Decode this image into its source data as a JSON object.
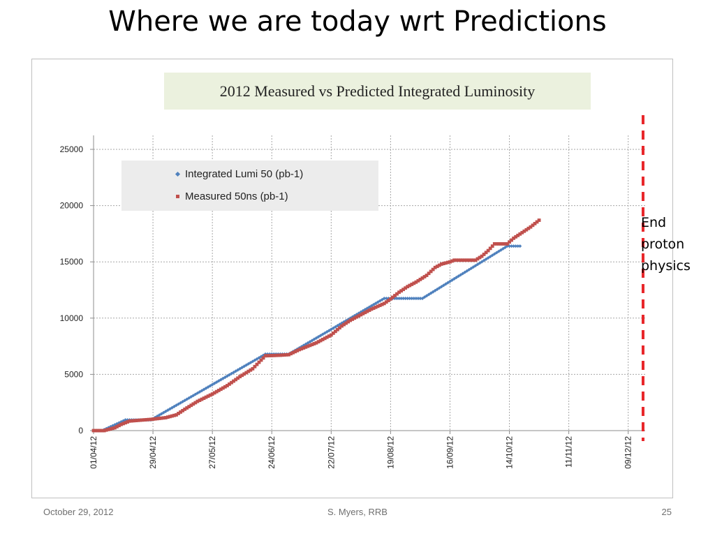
{
  "slide": {
    "title": "Where we are today wrt Predictions",
    "annotation_lines": [
      "End",
      "proton",
      "physics"
    ],
    "footer": {
      "date": "October 29, 2012",
      "author": "S. Myers, RRB",
      "page": "25"
    }
  },
  "colors": {
    "predicted": "#4f81bd",
    "measured": "#c0504d",
    "end_line": "#e8262a",
    "title_box": "#ebf1de"
  },
  "chart_data": {
    "type": "line",
    "title": "2012 Measured vs Predicted Integrated Luminosity",
    "ylim": [
      0,
      25000
    ],
    "y_ticks": [
      0,
      5000,
      10000,
      15000,
      20000,
      25000
    ],
    "y_tick_labels": [
      "0",
      "5000",
      "10000",
      "15000",
      "20000",
      "25000"
    ],
    "x_ticks": [
      "2012-04-01",
      "2012-04-29",
      "2012-05-27",
      "2012-06-24",
      "2012-07-22",
      "2012-08-19",
      "2012-09-16",
      "2012-10-14",
      "2012-11-11",
      "2012-12-09"
    ],
    "x_tick_labels": [
      "01/04/12",
      "29/04/12",
      "27/05/12",
      "24/06/12",
      "22/07/12",
      "19/08/12",
      "16/09/12",
      "14/10/12",
      "11/11/12",
      "09/12/12"
    ],
    "xlim": [
      "2012-04-01",
      "2012-12-17"
    ],
    "grid": true,
    "legend_position": "top-left",
    "end_marker": {
      "date": "2012-12-16",
      "label": "End proton physics"
    },
    "series": [
      {
        "name": "Integrated Lumi 50 (pb-1)",
        "marker": "diamond",
        "points": [
          [
            "2012-04-01",
            0
          ],
          [
            "2012-04-05",
            0
          ],
          [
            "2012-04-16",
            950
          ],
          [
            "2012-04-28",
            950
          ],
          [
            "2012-06-21",
            6800
          ],
          [
            "2012-07-02",
            6800
          ],
          [
            "2012-08-16",
            11750
          ],
          [
            "2012-09-03",
            11750
          ],
          [
            "2012-10-13",
            16400
          ],
          [
            "2012-10-19",
            16400
          ]
        ]
      },
      {
        "name": "Measured 50ns (pb-1)",
        "marker": "square",
        "points": [
          [
            "2012-04-01",
            0
          ],
          [
            "2012-04-06",
            0
          ],
          [
            "2012-04-11",
            250
          ],
          [
            "2012-04-14",
            550
          ],
          [
            "2012-04-18",
            850
          ],
          [
            "2012-04-28",
            1000
          ],
          [
            "2012-05-05",
            1150
          ],
          [
            "2012-05-10",
            1400
          ],
          [
            "2012-05-14",
            1900
          ],
          [
            "2012-05-20",
            2600
          ],
          [
            "2012-05-27",
            3250
          ],
          [
            "2012-06-03",
            4000
          ],
          [
            "2012-06-09",
            4800
          ],
          [
            "2012-06-15",
            5500
          ],
          [
            "2012-06-21",
            6650
          ],
          [
            "2012-06-28",
            6700
          ],
          [
            "2012-07-02",
            6750
          ],
          [
            "2012-07-07",
            7200
          ],
          [
            "2012-07-15",
            7800
          ],
          [
            "2012-07-22",
            8500
          ],
          [
            "2012-07-27",
            9300
          ],
          [
            "2012-07-31",
            9800
          ],
          [
            "2012-08-05",
            10300
          ],
          [
            "2012-08-10",
            10800
          ],
          [
            "2012-08-16",
            11300
          ],
          [
            "2012-08-19",
            11700
          ],
          [
            "2012-08-23",
            12300
          ],
          [
            "2012-08-27",
            12800
          ],
          [
            "2012-08-31",
            13200
          ],
          [
            "2012-09-05",
            13800
          ],
          [
            "2012-09-09",
            14500
          ],
          [
            "2012-09-12",
            14800
          ],
          [
            "2012-09-16",
            15000
          ],
          [
            "2012-09-18",
            15150
          ],
          [
            "2012-09-28",
            15150
          ],
          [
            "2012-10-01",
            15500
          ],
          [
            "2012-10-04",
            16000
          ],
          [
            "2012-10-07",
            16600
          ],
          [
            "2012-10-13",
            16600
          ],
          [
            "2012-10-16",
            17100
          ],
          [
            "2012-10-20",
            17600
          ],
          [
            "2012-10-24",
            18100
          ],
          [
            "2012-10-28",
            18700
          ]
        ]
      }
    ]
  }
}
